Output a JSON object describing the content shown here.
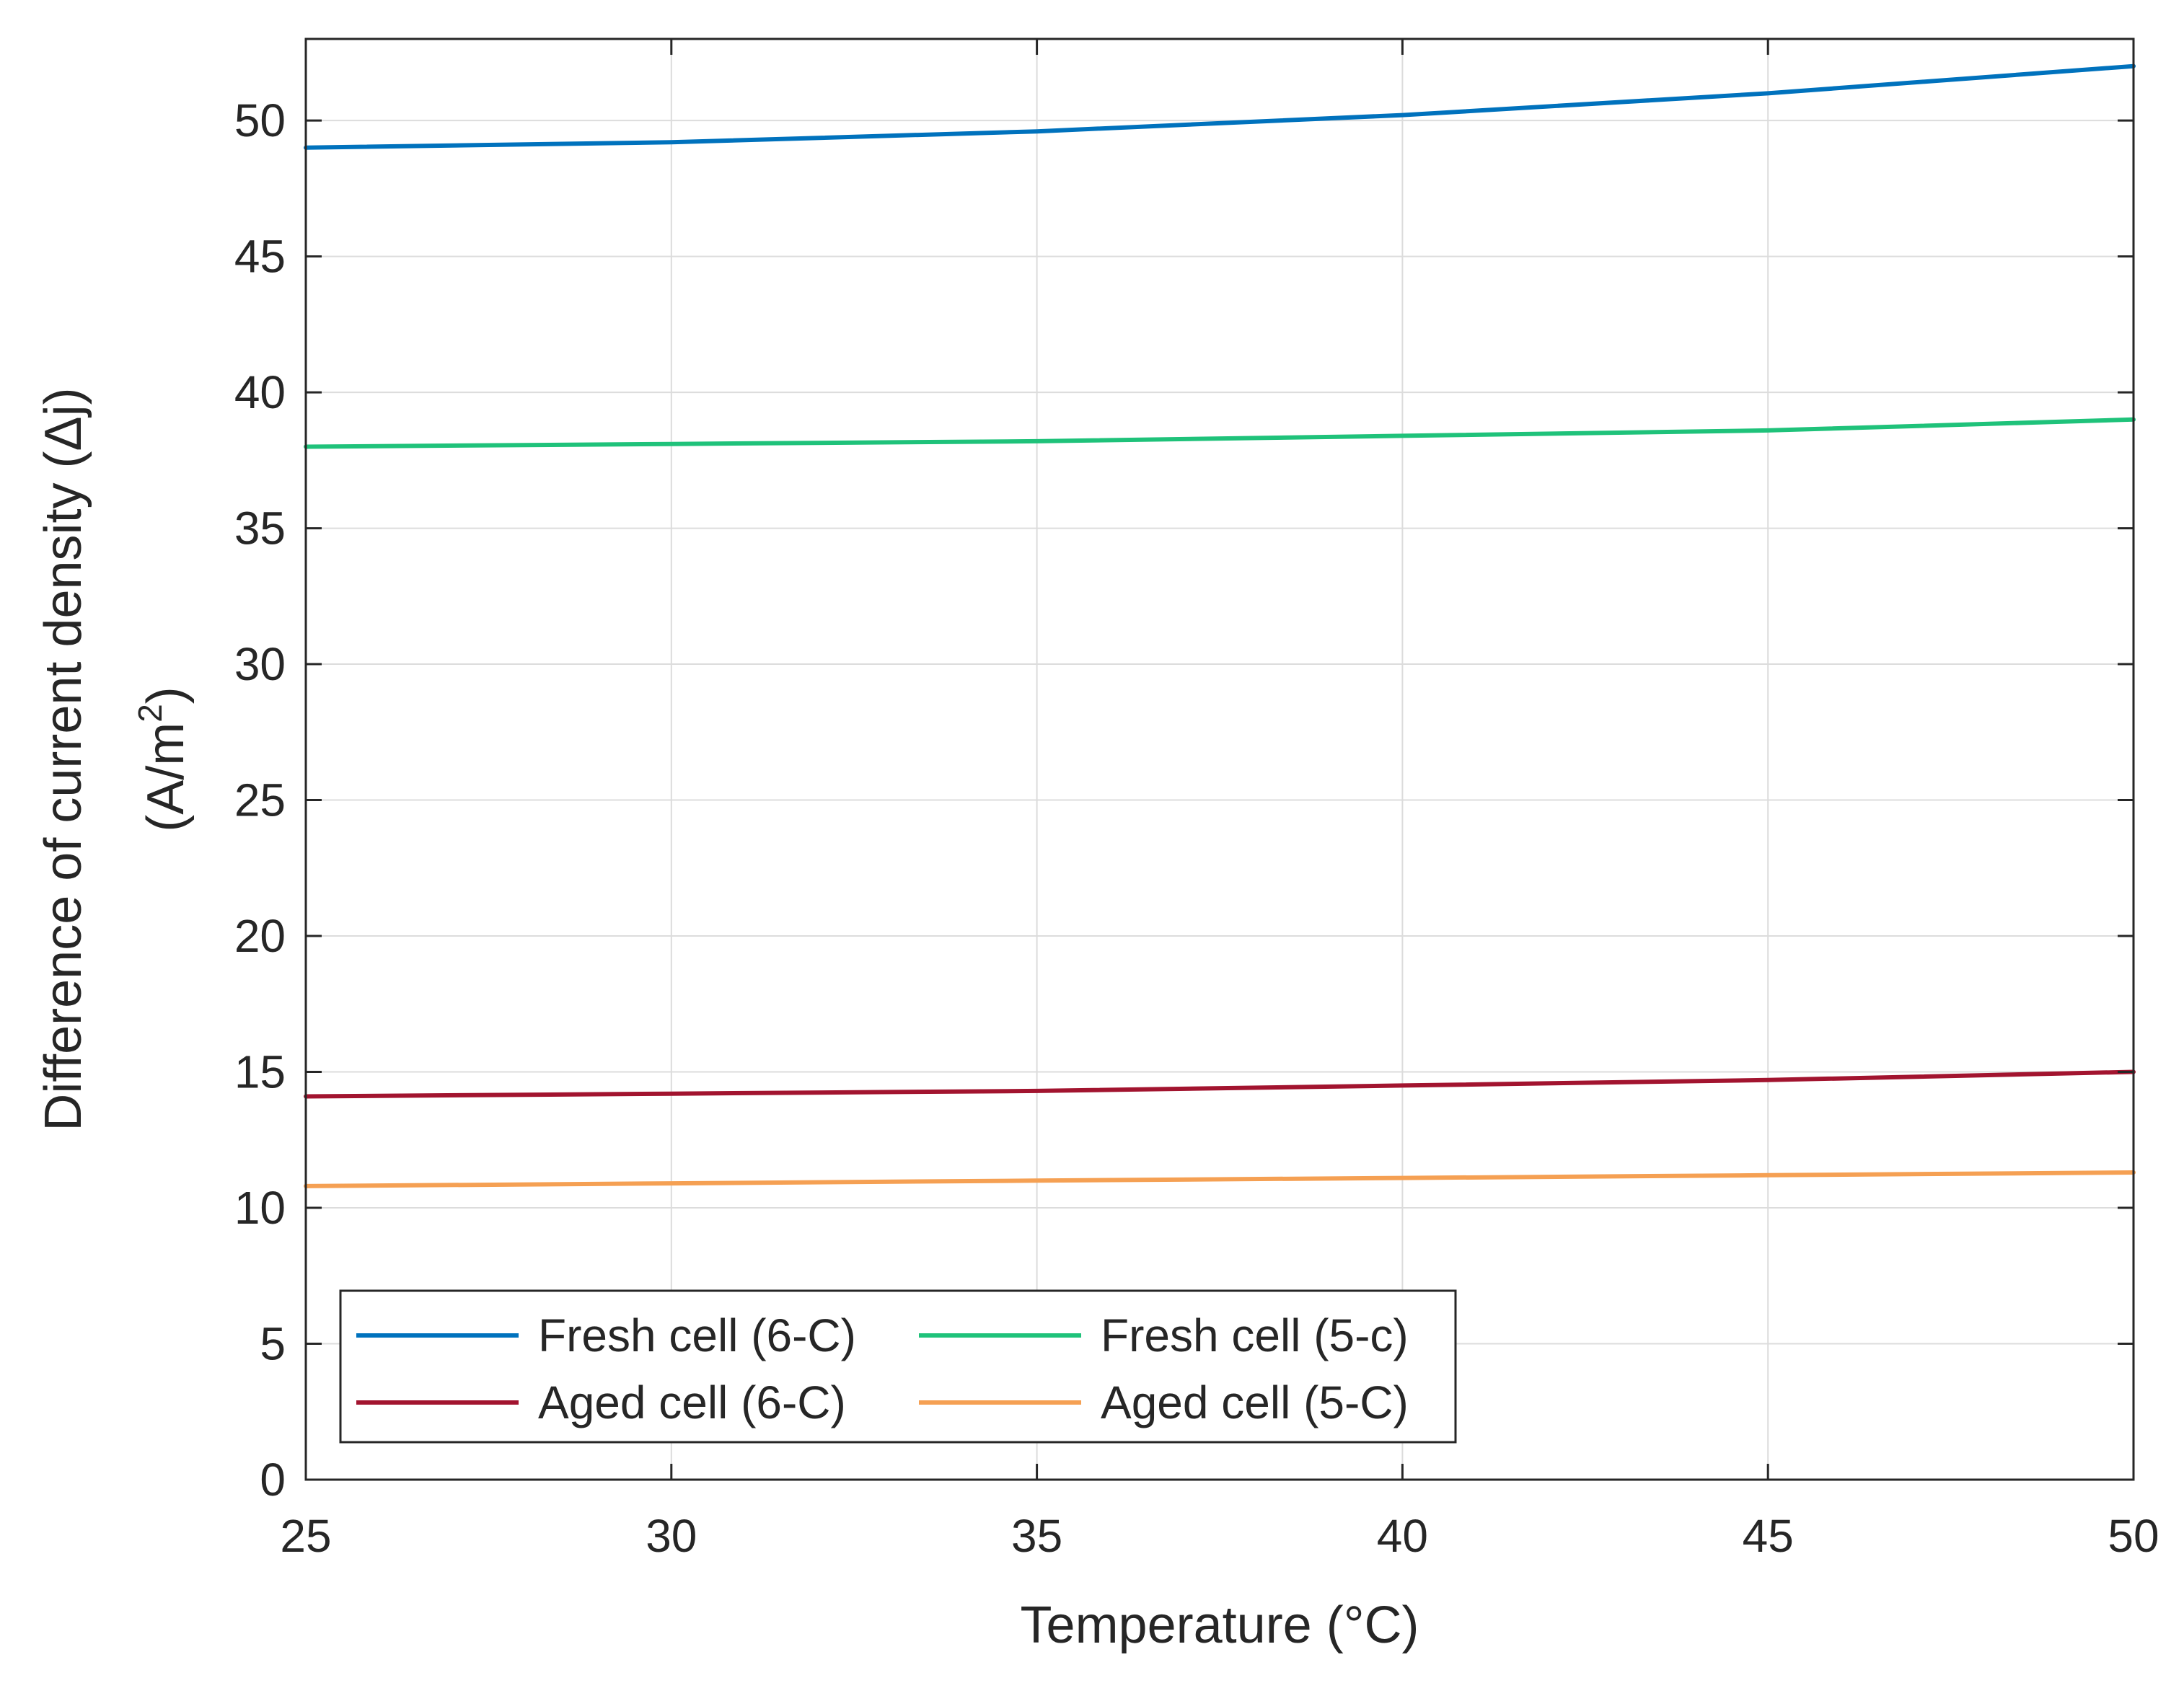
{
  "chart_data": {
    "type": "line",
    "title": "",
    "xlabel": "Temperature (°C)",
    "ylabel_line1": "Difference of current density (Δj)",
    "ylabel_line2_prefix": "(A/m",
    "ylabel_line2_sup": "2",
    "ylabel_line2_suffix": ")",
    "xlim": [
      25,
      50
    ],
    "ylim": [
      0,
      53
    ],
    "xticks": [
      25,
      30,
      35,
      40,
      45,
      50
    ],
    "yticks": [
      0,
      5,
      10,
      15,
      20,
      25,
      30,
      35,
      40,
      45,
      50
    ],
    "grid": true,
    "legend_position": "bottom-left",
    "x": [
      25,
      30,
      35,
      40,
      45,
      50
    ],
    "series": [
      {
        "name": "Fresh cell (6-C)",
        "color": "#0072BD",
        "values": [
          49.0,
          49.2,
          49.6,
          50.2,
          51.0,
          52.0
        ]
      },
      {
        "name": "Fresh cell (5-c)",
        "color": "#1FC27A",
        "values": [
          38.0,
          38.1,
          38.2,
          38.4,
          38.6,
          39.0
        ]
      },
      {
        "name": "Aged cell (6-C)",
        "color": "#A2142F",
        "values": [
          14.1,
          14.2,
          14.3,
          14.5,
          14.7,
          15.0
        ]
      },
      {
        "name": "Aged cell (5-C)",
        "color": "#F5A053",
        "values": [
          10.8,
          10.9,
          11.0,
          11.1,
          11.2,
          11.3
        ]
      }
    ]
  }
}
